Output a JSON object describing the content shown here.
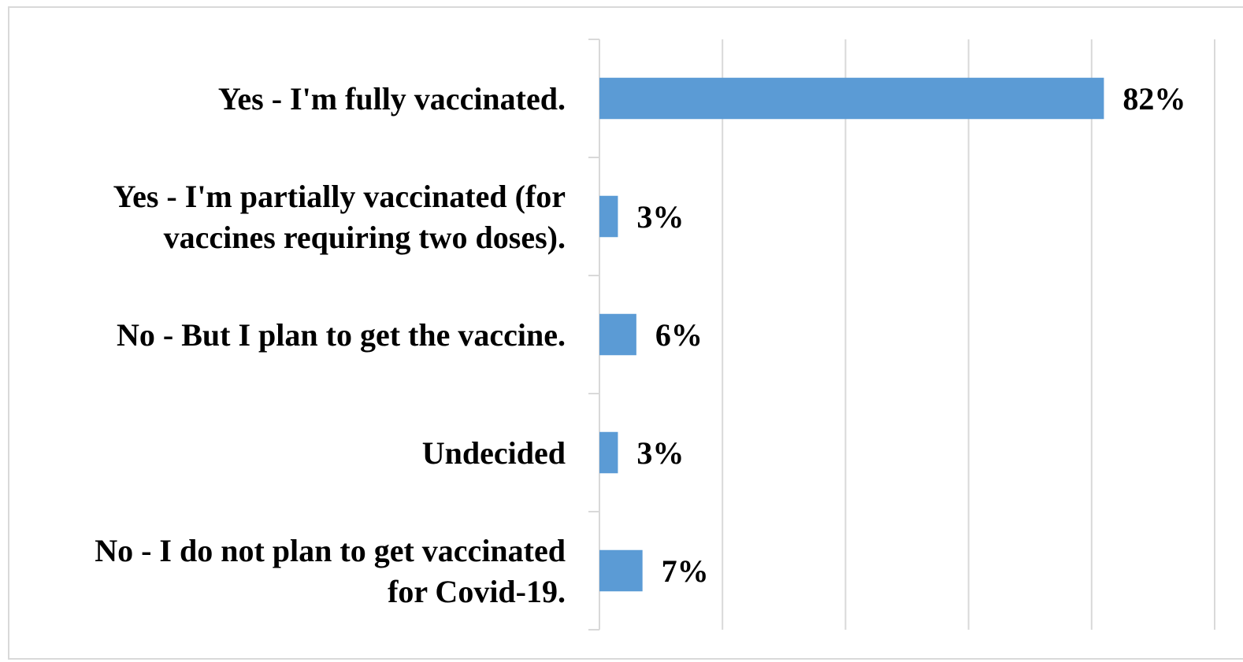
{
  "chart_data": {
    "type": "bar",
    "orientation": "horizontal",
    "categories": [
      [
        "Yes - I'm fully vaccinated."
      ],
      [
        "Yes - I'm partially vaccinated (for",
        "vaccines requiring two doses)."
      ],
      [
        "No - But I plan to get the vaccine."
      ],
      [
        "Undecided"
      ],
      [
        "No - I do not plan to get vaccinated",
        "for Covid-19."
      ]
    ],
    "values": [
      82,
      3,
      6,
      3,
      7
    ],
    "data_labels": [
      "82%",
      "3%",
      "6%",
      "3%",
      "7%"
    ],
    "value_unit": "%",
    "xlim": [
      0,
      100
    ],
    "x_gridline_step": 20,
    "grid": true,
    "title": "",
    "xlabel": "",
    "ylabel": "",
    "legend": "none"
  },
  "colors": {
    "bar": "#5b9bd5",
    "grid": "#d9d9d9",
    "axis": "#d9d9d9",
    "frame": "#d9d9d9",
    "text": "#000000"
  }
}
